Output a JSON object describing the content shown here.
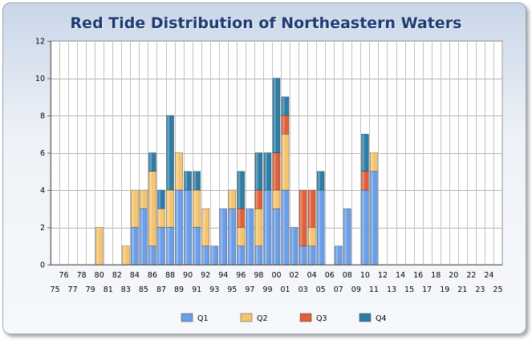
{
  "chart_data": {
    "type": "bar",
    "stacked": true,
    "title": "Red Tide Distribution of Northeastern Waters",
    "xlabel": "",
    "ylabel": "",
    "ylim": [
      0,
      12
    ],
    "yticks": [
      "0",
      "2",
      "4",
      "6",
      "8",
      "10",
      "12"
    ],
    "grid": true,
    "legend_position": "bottom",
    "categories": [
      "75",
      "76",
      "77",
      "78",
      "79",
      "80",
      "81",
      "82",
      "83",
      "84",
      "85",
      "86",
      "87",
      "88",
      "89",
      "90",
      "91",
      "92",
      "93",
      "94",
      "95",
      "96",
      "97",
      "98",
      "99",
      "00",
      "01",
      "02",
      "03",
      "04",
      "05",
      "06",
      "07",
      "08",
      "09",
      "10",
      "11",
      "12",
      "13",
      "14",
      "15",
      "16",
      "17",
      "18",
      "19",
      "20",
      "21",
      "22",
      "23",
      "24",
      "25"
    ],
    "series": [
      {
        "name": "Q1",
        "color": "#6a9ee8",
        "values": [
          0,
          0,
          0,
          0,
          0,
          0,
          0,
          0,
          0,
          2,
          3,
          1,
          2,
          2,
          4,
          4,
          2,
          1,
          1,
          3,
          3,
          1,
          3,
          1,
          4,
          3,
          4,
          2,
          1,
          1,
          4,
          0,
          1,
          3,
          0,
          4,
          5,
          0,
          0,
          0,
          0,
          0,
          0,
          0,
          0,
          0,
          0,
          0,
          0,
          0,
          0
        ]
      },
      {
        "name": "Q2",
        "color": "#f5c46e",
        "values": [
          0,
          0,
          0,
          0,
          0,
          2,
          0,
          0,
          1,
          2,
          1,
          4,
          1,
          2,
          2,
          0,
          2,
          2,
          0,
          0,
          1,
          1,
          0,
          2,
          0,
          1,
          3,
          0,
          0,
          1,
          0,
          0,
          0,
          0,
          0,
          0,
          1,
          0,
          0,
          0,
          0,
          0,
          0,
          0,
          0,
          0,
          0,
          0,
          0,
          0,
          0
        ]
      },
      {
        "name": "Q3",
        "color": "#e0603a",
        "values": [
          0,
          0,
          0,
          0,
          0,
          0,
          0,
          0,
          0,
          0,
          0,
          0,
          0,
          0,
          0,
          0,
          0,
          0,
          0,
          0,
          0,
          1,
          0,
          1,
          0,
          2,
          1,
          0,
          3,
          2,
          0,
          0,
          0,
          0,
          0,
          1,
          0,
          0,
          0,
          0,
          0,
          0,
          0,
          0,
          0,
          0,
          0,
          0,
          0,
          0,
          0
        ]
      },
      {
        "name": "Q4",
        "color": "#2f7da6",
        "values": [
          0,
          0,
          0,
          0,
          0,
          0,
          0,
          0,
          0,
          0,
          0,
          1,
          1,
          4,
          0,
          1,
          1,
          0,
          0,
          0,
          0,
          2,
          0,
          2,
          2,
          4,
          1,
          0,
          0,
          0,
          1,
          0,
          0,
          0,
          0,
          2,
          0,
          0,
          0,
          0,
          0,
          0,
          0,
          0,
          0,
          0,
          0,
          0,
          0,
          0,
          0
        ]
      }
    ]
  }
}
